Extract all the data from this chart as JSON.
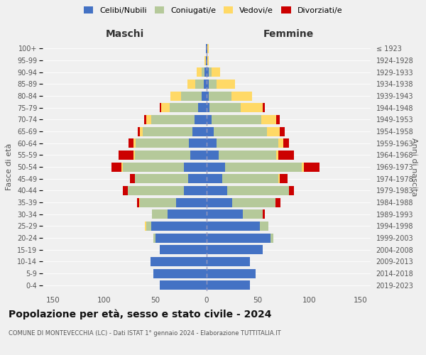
{
  "age_groups": [
    "0-4",
    "5-9",
    "10-14",
    "15-19",
    "20-24",
    "25-29",
    "30-34",
    "35-39",
    "40-44",
    "45-49",
    "50-54",
    "55-59",
    "60-64",
    "65-69",
    "70-74",
    "75-79",
    "80-84",
    "85-89",
    "90-94",
    "95-99",
    "100+"
  ],
  "birth_years": [
    "2019-2023",
    "2014-2018",
    "2009-2013",
    "2004-2008",
    "1999-2003",
    "1994-1998",
    "1989-1993",
    "1984-1988",
    "1979-1983",
    "1974-1978",
    "1969-1973",
    "1964-1968",
    "1959-1963",
    "1954-1958",
    "1949-1953",
    "1944-1948",
    "1939-1943",
    "1934-1938",
    "1929-1933",
    "1924-1928",
    "≤ 1923"
  ],
  "male_celibi": [
    46,
    52,
    55,
    46,
    50,
    54,
    38,
    30,
    22,
    18,
    22,
    16,
    17,
    14,
    12,
    8,
    5,
    3,
    2,
    1,
    1
  ],
  "male_coniugati": [
    0,
    0,
    0,
    0,
    2,
    5,
    15,
    35,
    55,
    52,
    60,
    54,
    52,
    48,
    42,
    28,
    20,
    8,
    3,
    0,
    0
  ],
  "male_vedovi": [
    0,
    0,
    0,
    0,
    0,
    1,
    0,
    1,
    0,
    0,
    1,
    1,
    2,
    3,
    5,
    8,
    10,
    8,
    5,
    1,
    0
  ],
  "male_divorziati": [
    0,
    0,
    0,
    0,
    0,
    0,
    0,
    2,
    5,
    5,
    10,
    15,
    5,
    2,
    2,
    2,
    0,
    0,
    0,
    0,
    0
  ],
  "female_celibi": [
    42,
    48,
    42,
    55,
    62,
    52,
    35,
    25,
    20,
    15,
    18,
    12,
    10,
    7,
    5,
    3,
    2,
    2,
    2,
    1,
    1
  ],
  "female_coniugati": [
    0,
    0,
    0,
    0,
    3,
    8,
    20,
    42,
    60,
    55,
    75,
    56,
    60,
    52,
    48,
    30,
    22,
    8,
    3,
    0,
    0
  ],
  "female_vedovi": [
    0,
    0,
    0,
    0,
    0,
    0,
    0,
    0,
    0,
    1,
    2,
    2,
    5,
    12,
    15,
    22,
    20,
    18,
    8,
    1,
    1
  ],
  "female_divorziati": [
    0,
    0,
    0,
    0,
    0,
    0,
    2,
    5,
    5,
    8,
    15,
    15,
    5,
    5,
    3,
    2,
    0,
    0,
    0,
    0,
    0
  ],
  "color_celibi": "#4472c4",
  "color_coniugati": "#b5c99a",
  "color_vedovi": "#ffd966",
  "color_divorziati": "#cc0000",
  "bg_color": "#f0f0f0",
  "title": "Popolazione per età, sesso e stato civile - 2024",
  "subtitle": "COMUNE DI MONTEVECCHIA (LC) - Dati ISTAT 1° gennaio 2024 - Elaborazione TUTTITALIA.IT",
  "xlabel_left": "Maschi",
  "xlabel_right": "Femmine",
  "ylabel_left": "Fasce di età",
  "ylabel_right": "Anni di nascita",
  "xlim": 160,
  "legend_labels": [
    "Celibi/Nubili",
    "Coniugati/e",
    "Vedovi/e",
    "Divorziati/e"
  ]
}
